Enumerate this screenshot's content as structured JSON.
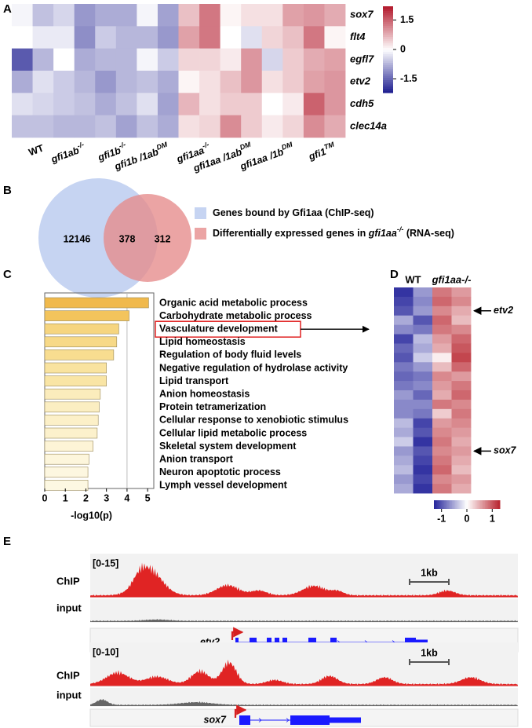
{
  "panel_labels": [
    "A",
    "B",
    "C",
    "D",
    "E"
  ],
  "chart_data": [
    {
      "type": "heatmap",
      "rows": [
        "sox7",
        "flt4",
        "egfl7",
        "etv2",
        "cdh5",
        "clec14a"
      ],
      "groups": [
        {
          "text": "WT"
        },
        {
          "text": "gfi1ab",
          "sup": "-/-"
        },
        {
          "text": "gfi1b",
          "sup": "-/-"
        },
        {
          "text": "gfi1b /1ab",
          "sup": "DM"
        },
        {
          "text": "gfi1aa",
          "sup": "-/-"
        },
        {
          "text": "gfi1aa /1ab",
          "sup": "DM"
        },
        {
          "text": "gfi1aa /1b",
          "sup": "DM"
        },
        {
          "text": "gfi1",
          "sup": "TM"
        }
      ],
      "values": [
        [
          -0.1,
          -0.6,
          -0.4,
          -1.0,
          -0.8,
          -0.8,
          -0.1,
          -0.9,
          0.6,
          1.3,
          0.1,
          0.3,
          0.3,
          0.9,
          1.0,
          0.8
        ],
        [
          0,
          -0.2,
          -0.2,
          -1.1,
          -0.5,
          -0.7,
          -0.7,
          -1.0,
          0.9,
          1.3,
          0,
          -0.3,
          0.4,
          0.6,
          1.3,
          0.1
        ],
        [
          -1.6,
          -0.7,
          0,
          -0.8,
          -0.7,
          -0.7,
          -0.1,
          -0.5,
          0.4,
          0.4,
          0.2,
          1.0,
          -0.4,
          0.5,
          0.8,
          0.9
        ],
        [
          -0.8,
          -0.3,
          -0.5,
          -0.7,
          -1.0,
          -0.7,
          -0.6,
          -0.8,
          0.1,
          0.3,
          0.6,
          1.0,
          0.3,
          0.5,
          0.9,
          1.0
        ],
        [
          -0.3,
          -0.4,
          -0.5,
          -0.6,
          -0.8,
          -0.6,
          -0.3,
          -0.9,
          0.7,
          0.3,
          0.5,
          0.5,
          0,
          0.2,
          1.5,
          1.0
        ],
        [
          -0.6,
          -0.6,
          -0.7,
          -0.7,
          -0.6,
          -0.9,
          -0.6,
          -0.8,
          0.3,
          0.4,
          1.1,
          0.5,
          0.2,
          0.4,
          1.1,
          0.8
        ]
      ],
      "clim": [
        -2.2,
        2.2
      ],
      "cticks": [
        1.5,
        0,
        -1.5
      ],
      "colors": [
        "#1c1c8f",
        "#ffffff",
        "#b2182b"
      ]
    },
    {
      "type": "venn",
      "sets": [
        {
          "name": [
            "Genes bound by Gfi1aa (ChIP-seq)"
          ],
          "color": "#c6d4f2"
        },
        {
          "name": [
            "Differentially expressed genes in ",
            "gfi1aa",
            "-/-",
            " (RNA-seq)"
          ],
          "color": "#e58a8a"
        }
      ],
      "values": [
        12146,
        378,
        312
      ]
    },
    {
      "type": "bar",
      "orientation": "horizontal",
      "categories": [
        "Organic acid metabolic process",
        "Carbohydrate metabolic process",
        "Vasculature development",
        "Lipid homeostasis",
        "Regulation of body fluid levels",
        "Negative regulation of hydrolase activity",
        "Lipid transport",
        "Anion homeostasis",
        "Protein tetramerization",
        "Cellular response to xenobiotic stimulus",
        "Cellular lipid metabolic process",
        "Skeletal system development",
        "Anion transport",
        "Neuron apoptotic process",
        "Lymph vessel development"
      ],
      "values": [
        5.05,
        4.1,
        3.6,
        3.5,
        3.35,
        3.0,
        3.0,
        2.7,
        2.65,
        2.6,
        2.55,
        2.35,
        2.15,
        2.1,
        2.1
      ],
      "colors": [
        "#f0b94c",
        "#f3c45c",
        "#f6d57f",
        "#f7d987",
        "#f8dd90",
        "#f9e39f",
        "#f9e5a5",
        "#fbecbc",
        "#fbeec2",
        "#fcf0c8",
        "#fcf1cc",
        "#fdf4d6",
        "#fdf6dc",
        "#fdf7e0",
        "#fdf8e2"
      ],
      "xlim": [
        0,
        5.3
      ],
      "xticks": [
        0,
        1,
        2,
        3,
        4,
        5
      ],
      "xlabel": "-log10(p)",
      "vline": 4,
      "highlight": 2
    },
    {
      "type": "heatmap",
      "groups": [
        {
          "text": "WT"
        },
        {
          "text": "gfi1aa-/-"
        }
      ],
      "values": [
        [
          -1.2,
          -0.6,
          0.8,
          0.6
        ],
        [
          -1.1,
          -0.7,
          0.9,
          0.7
        ],
        [
          -1.0,
          -0.6,
          0.7,
          0.5
        ],
        [
          -0.5,
          -1.0,
          0.9,
          0.4
        ],
        [
          -0.7,
          -0.8,
          0.8,
          0.7
        ],
        [
          -1.1,
          -0.4,
          0.6,
          0.9
        ],
        [
          -0.9,
          -0.5,
          0.5,
          1.0
        ],
        [
          -1.0,
          -0.3,
          0.1,
          1.1
        ],
        [
          -0.8,
          -0.6,
          0.4,
          0.9
        ],
        [
          -0.9,
          -0.8,
          0.7,
          0.6
        ],
        [
          -0.8,
          -0.7,
          0.6,
          0.8
        ],
        [
          -0.6,
          -0.9,
          0.5,
          0.9
        ],
        [
          -0.7,
          -0.7,
          0.8,
          0.7
        ],
        [
          -0.7,
          -0.8,
          0.3,
          0.8
        ],
        [
          -0.4,
          -1.1,
          0.6,
          0.7
        ],
        [
          -0.5,
          -1.0,
          0.7,
          0.6
        ],
        [
          -0.3,
          -1.2,
          0.8,
          0.5
        ],
        [
          -0.6,
          -1.0,
          0.7,
          0.6
        ],
        [
          -0.5,
          -1.1,
          0.8,
          0.5
        ],
        [
          -0.4,
          -1.2,
          0.9,
          0.4
        ],
        [
          -0.6,
          -1.1,
          0.7,
          0.6
        ],
        [
          -0.5,
          -1.2,
          0.8,
          0.5
        ]
      ],
      "clim": [
        -1.3,
        1.3
      ],
      "cticks": [
        -1,
        0,
        1
      ],
      "colors": [
        "#23239a",
        "#ffffff",
        "#b8242e"
      ],
      "annotations": [
        {
          "text": "etv2",
          "row": 2
        },
        {
          "text": "sox7",
          "row": 17
        }
      ]
    }
  ],
  "tracks": [
    {
      "chip": "ChIP",
      "range": "[0-15]",
      "input": "input",
      "gene": "etv2",
      "scale": "1kb"
    },
    {
      "chip": "ChIP",
      "range": "[0-10]",
      "input": "input",
      "gene": "sox7",
      "scale": "1kb"
    }
  ]
}
